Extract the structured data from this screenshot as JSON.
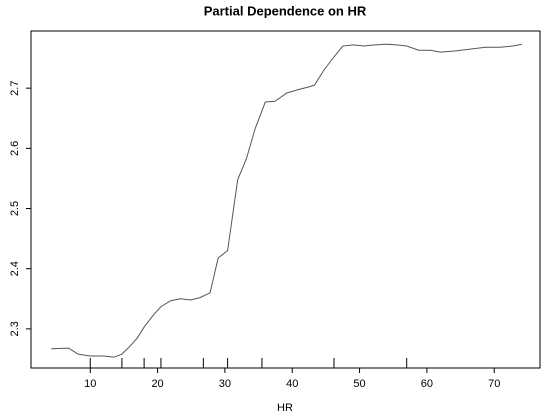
{
  "chart_data": {
    "type": "line",
    "title": "Partial Dependence on HR",
    "x_label": "HR",
    "color": "#555555",
    "x": [
      4.2,
      6.8,
      8.2,
      10,
      12,
      13.5,
      14.7,
      15.8,
      17,
      18,
      19.3,
      20.5,
      22,
      23.4,
      24.9,
      26.3,
      27.8,
      29,
      30.4,
      31.9,
      33.2,
      34.5,
      36,
      37.4,
      39.2,
      40.7,
      42.4,
      43.3,
      44.7,
      46.2,
      47.5,
      49.1,
      50.6,
      52.3,
      54.1,
      55.5,
      57,
      58.8,
      60.5,
      62,
      64.3,
      66.6,
      68.7,
      70.9,
      72.8,
      74.1
    ],
    "values": [
      2.267,
      2.268,
      2.258,
      2.255,
      2.255,
      2.253,
      2.258,
      2.27,
      2.285,
      2.303,
      2.322,
      2.337,
      2.347,
      2.35,
      2.348,
      2.352,
      2.36,
      2.418,
      2.43,
      2.548,
      2.583,
      2.633,
      2.677,
      2.678,
      2.692,
      2.697,
      2.702,
      2.705,
      2.73,
      2.752,
      2.77,
      2.772,
      2.77,
      2.772,
      2.773,
      2.772,
      2.77,
      2.763,
      2.763,
      2.76,
      2.762,
      2.765,
      2.768,
      2.768,
      2.77,
      2.773
    ],
    "rug": [
      10,
      14.7,
      18,
      20.5,
      26.8,
      30.4,
      35.5,
      46.2,
      57
    ],
    "xlim": [
      1.2,
      76.8
    ],
    "xticks": [
      10,
      20,
      30,
      40,
      50,
      60,
      70
    ],
    "ylim": [
      2.235,
      2.795
    ],
    "yticks": [
      2.3,
      2.4,
      2.5,
      2.6,
      2.7
    ]
  }
}
